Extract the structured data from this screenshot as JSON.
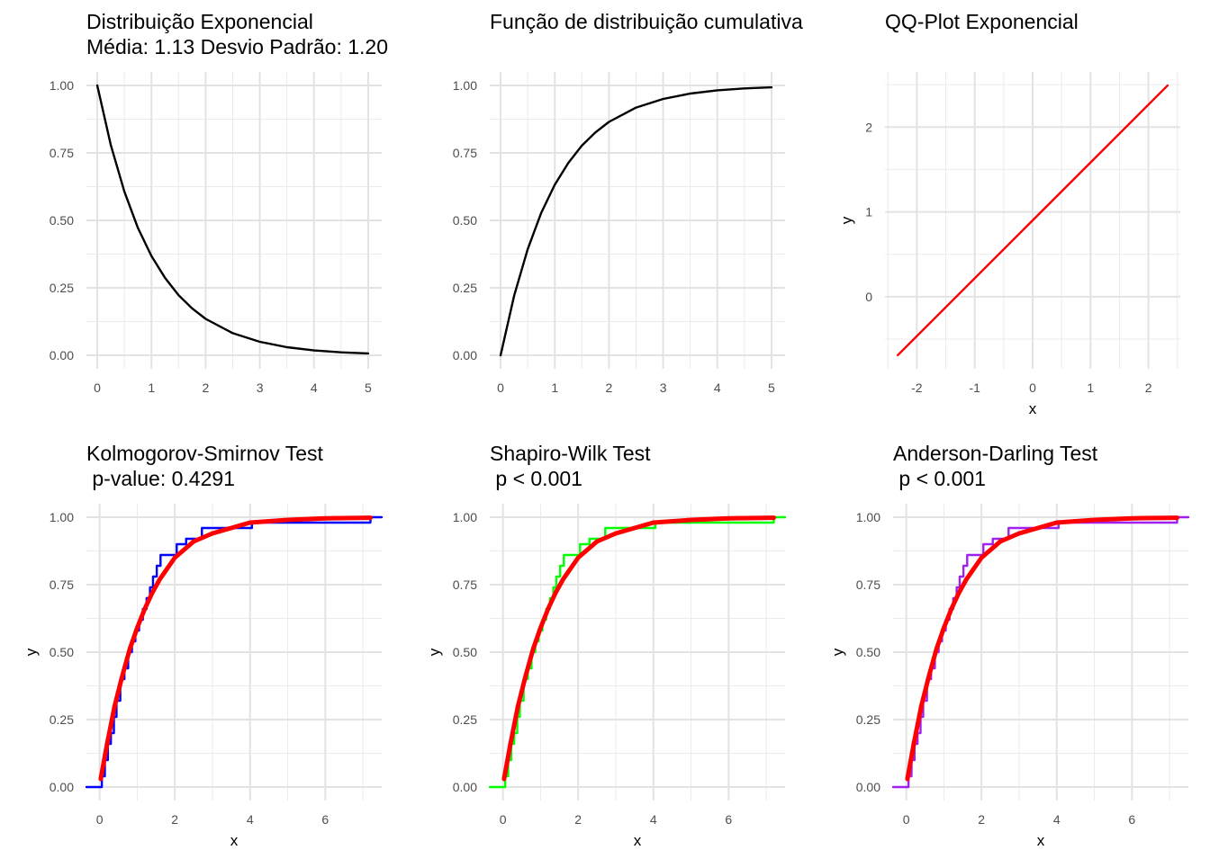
{
  "chart_data": [
    {
      "id": "p1",
      "type": "line",
      "title": "Distribuição Exponencial",
      "subtitle": "Média: 1.13 Desvio Padrão: 1.20",
      "xlabel": "",
      "ylabel": "",
      "xlim": [
        -0.2,
        5.25
      ],
      "ylim": [
        -0.05,
        1.05
      ],
      "xticks": [
        0,
        1,
        2,
        3,
        4,
        5
      ],
      "xtick_labels": [
        "0",
        "1",
        "2",
        "3",
        "4",
        "5"
      ],
      "yticks": [
        0,
        0.25,
        0.5,
        0.75,
        1
      ],
      "ytick_labels": [
        "0.00",
        "0.25",
        "0.50",
        "0.75",
        "1.00"
      ],
      "grid": true,
      "series": [
        {
          "color": "#000000",
          "x": [
            0,
            0.25,
            0.5,
            0.75,
            1,
            1.25,
            1.5,
            1.75,
            2,
            2.5,
            3,
            3.5,
            4,
            4.5,
            5
          ],
          "y": [
            1,
            0.779,
            0.607,
            0.472,
            0.368,
            0.287,
            0.223,
            0.174,
            0.135,
            0.082,
            0.05,
            0.03,
            0.018,
            0.011,
            0.007
          ]
        }
      ]
    },
    {
      "id": "p2",
      "type": "line",
      "title": "Função de distribuição cumulativa",
      "subtitle": "",
      "xlabel": "",
      "ylabel": "",
      "xlim": [
        -0.2,
        5.25
      ],
      "ylim": [
        -0.05,
        1.05
      ],
      "xticks": [
        0,
        1,
        2,
        3,
        4,
        5
      ],
      "xtick_labels": [
        "0",
        "1",
        "2",
        "3",
        "4",
        "5"
      ],
      "yticks": [
        0,
        0.25,
        0.5,
        0.75,
        1
      ],
      "ytick_labels": [
        "0.00",
        "0.25",
        "0.50",
        "0.75",
        "1.00"
      ],
      "grid": true,
      "series": [
        {
          "color": "#000000",
          "x": [
            0,
            0.25,
            0.5,
            0.75,
            1,
            1.25,
            1.5,
            1.75,
            2,
            2.5,
            3,
            3.5,
            4,
            4.5,
            5
          ],
          "y": [
            0,
            0.221,
            0.393,
            0.528,
            0.632,
            0.713,
            0.777,
            0.826,
            0.865,
            0.918,
            0.95,
            0.97,
            0.982,
            0.989,
            0.993
          ]
        }
      ]
    },
    {
      "id": "p3",
      "type": "line",
      "title": "QQ-Plot Exponencial",
      "subtitle": "",
      "xlabel": "x",
      "ylabel": "y",
      "xlim": [
        -2.55,
        2.55
      ],
      "ylim": [
        -0.85,
        2.65
      ],
      "xticks": [
        -2,
        -1,
        0,
        1,
        2
      ],
      "xtick_labels": [
        "-2",
        "-1",
        "0",
        "1",
        "2"
      ],
      "yticks": [
        0,
        1,
        2
      ],
      "ytick_labels": [
        "0",
        "1",
        "2"
      ],
      "grid": true,
      "series": [
        {
          "color": "#ff0000",
          "x": [
            -2.33,
            2.33
          ],
          "y": [
            -0.69,
            2.49
          ]
        }
      ]
    },
    {
      "id": "p4",
      "type": "line",
      "title": "Kolmogorov-Smirnov Test",
      "subtitle": " p-value: 0.4291",
      "xlabel": "x",
      "ylabel": "y",
      "xlim": [
        -0.35,
        7.5
      ],
      "ylim": [
        -0.05,
        1.05
      ],
      "xticks": [
        0,
        2,
        4,
        6
      ],
      "xtick_labels": [
        "0",
        "2",
        "4",
        "6"
      ],
      "yticks": [
        0,
        0.25,
        0.5,
        0.75,
        1
      ],
      "ytick_labels": [
        "0.00",
        "0.25",
        "0.50",
        "0.75",
        "1.00"
      ],
      "grid": true,
      "series": [
        {
          "color": "#0000ff",
          "step": true,
          "x": [
            -0.35,
            0.06,
            0.14,
            0.22,
            0.3,
            0.38,
            0.45,
            0.55,
            0.66,
            0.76,
            0.86,
            0.95,
            1.05,
            1.15,
            1.25,
            1.34,
            1.42,
            1.52,
            1.62,
            2.05,
            2.3,
            2.72,
            4.05,
            7.2,
            7.5
          ],
          "y": [
            0,
            0.04,
            0.1,
            0.16,
            0.2,
            0.26,
            0.32,
            0.4,
            0.44,
            0.5,
            0.54,
            0.58,
            0.62,
            0.66,
            0.7,
            0.74,
            0.78,
            0.82,
            0.86,
            0.9,
            0.92,
            0.96,
            0.98,
            1,
            1
          ]
        },
        {
          "color": "#ff0000",
          "width": 5,
          "x": [
            0.03,
            0.2,
            0.4,
            0.6,
            0.8,
            1,
            1.2,
            1.4,
            1.6,
            1.8,
            2,
            2.5,
            3,
            3.5,
            4,
            5,
            6,
            7.2
          ],
          "y": [
            0.03,
            0.16,
            0.3,
            0.41,
            0.51,
            0.59,
            0.66,
            0.72,
            0.77,
            0.81,
            0.85,
            0.91,
            0.94,
            0.96,
            0.98,
            0.99,
            0.996,
            0.998
          ]
        }
      ]
    },
    {
      "id": "p5",
      "type": "line",
      "title": "Shapiro-Wilk Test",
      "subtitle": " p < 0.001",
      "xlabel": "x",
      "ylabel": "y",
      "xlim": [
        -0.35,
        7.5
      ],
      "ylim": [
        -0.05,
        1.05
      ],
      "xticks": [
        0,
        2,
        4,
        6
      ],
      "xtick_labels": [
        "0",
        "2",
        "4",
        "6"
      ],
      "yticks": [
        0,
        0.25,
        0.5,
        0.75,
        1
      ],
      "ytick_labels": [
        "0.00",
        "0.25",
        "0.50",
        "0.75",
        "1.00"
      ],
      "grid": true,
      "series": [
        {
          "color": "#00ff00",
          "step": true,
          "x": [
            -0.35,
            0.06,
            0.14,
            0.22,
            0.3,
            0.38,
            0.45,
            0.55,
            0.66,
            0.76,
            0.86,
            0.95,
            1.05,
            1.15,
            1.25,
            1.34,
            1.42,
            1.52,
            1.62,
            2.05,
            2.3,
            2.72,
            4.05,
            7.2,
            7.5
          ],
          "y": [
            0,
            0.04,
            0.1,
            0.16,
            0.2,
            0.26,
            0.32,
            0.4,
            0.44,
            0.5,
            0.54,
            0.58,
            0.62,
            0.66,
            0.7,
            0.74,
            0.78,
            0.82,
            0.86,
            0.9,
            0.92,
            0.96,
            0.98,
            1,
            1
          ]
        },
        {
          "color": "#ff0000",
          "width": 5,
          "x": [
            0.03,
            0.2,
            0.4,
            0.6,
            0.8,
            1,
            1.2,
            1.4,
            1.6,
            1.8,
            2,
            2.5,
            3,
            3.5,
            4,
            5,
            6,
            7.2
          ],
          "y": [
            0.03,
            0.16,
            0.3,
            0.41,
            0.51,
            0.59,
            0.66,
            0.72,
            0.77,
            0.81,
            0.85,
            0.91,
            0.94,
            0.96,
            0.98,
            0.99,
            0.996,
            0.998
          ]
        }
      ]
    },
    {
      "id": "p6",
      "type": "line",
      "title": "Anderson-Darling Test",
      "subtitle": " p < 0.001",
      "xlabel": "x",
      "ylabel": "y",
      "xlim": [
        -0.35,
        7.5
      ],
      "ylim": [
        -0.05,
        1.05
      ],
      "xticks": [
        0,
        2,
        4,
        6
      ],
      "xtick_labels": [
        "0",
        "2",
        "4",
        "6"
      ],
      "yticks": [
        0,
        0.25,
        0.5,
        0.75,
        1
      ],
      "ytick_labels": [
        "0.00",
        "0.25",
        "0.50",
        "0.75",
        "1.00"
      ],
      "grid": true,
      "series": [
        {
          "color": "#a020f0",
          "step": true,
          "x": [
            -0.35,
            0.06,
            0.14,
            0.22,
            0.3,
            0.38,
            0.45,
            0.55,
            0.66,
            0.76,
            0.86,
            0.95,
            1.05,
            1.15,
            1.25,
            1.34,
            1.42,
            1.52,
            1.62,
            2.05,
            2.3,
            2.72,
            4.05,
            7.2,
            7.5
          ],
          "y": [
            0,
            0.04,
            0.1,
            0.16,
            0.2,
            0.26,
            0.32,
            0.4,
            0.44,
            0.5,
            0.54,
            0.58,
            0.62,
            0.66,
            0.7,
            0.74,
            0.78,
            0.82,
            0.86,
            0.9,
            0.92,
            0.96,
            0.98,
            1,
            1
          ]
        },
        {
          "color": "#ff0000",
          "width": 5,
          "x": [
            0.03,
            0.2,
            0.4,
            0.6,
            0.8,
            1,
            1.2,
            1.4,
            1.6,
            1.8,
            2,
            2.5,
            3,
            3.5,
            4,
            5,
            6,
            7.2
          ],
          "y": [
            0.03,
            0.16,
            0.3,
            0.41,
            0.51,
            0.59,
            0.66,
            0.72,
            0.77,
            0.81,
            0.85,
            0.91,
            0.94,
            0.96,
            0.98,
            0.99,
            0.996,
            0.998
          ]
        }
      ]
    }
  ]
}
